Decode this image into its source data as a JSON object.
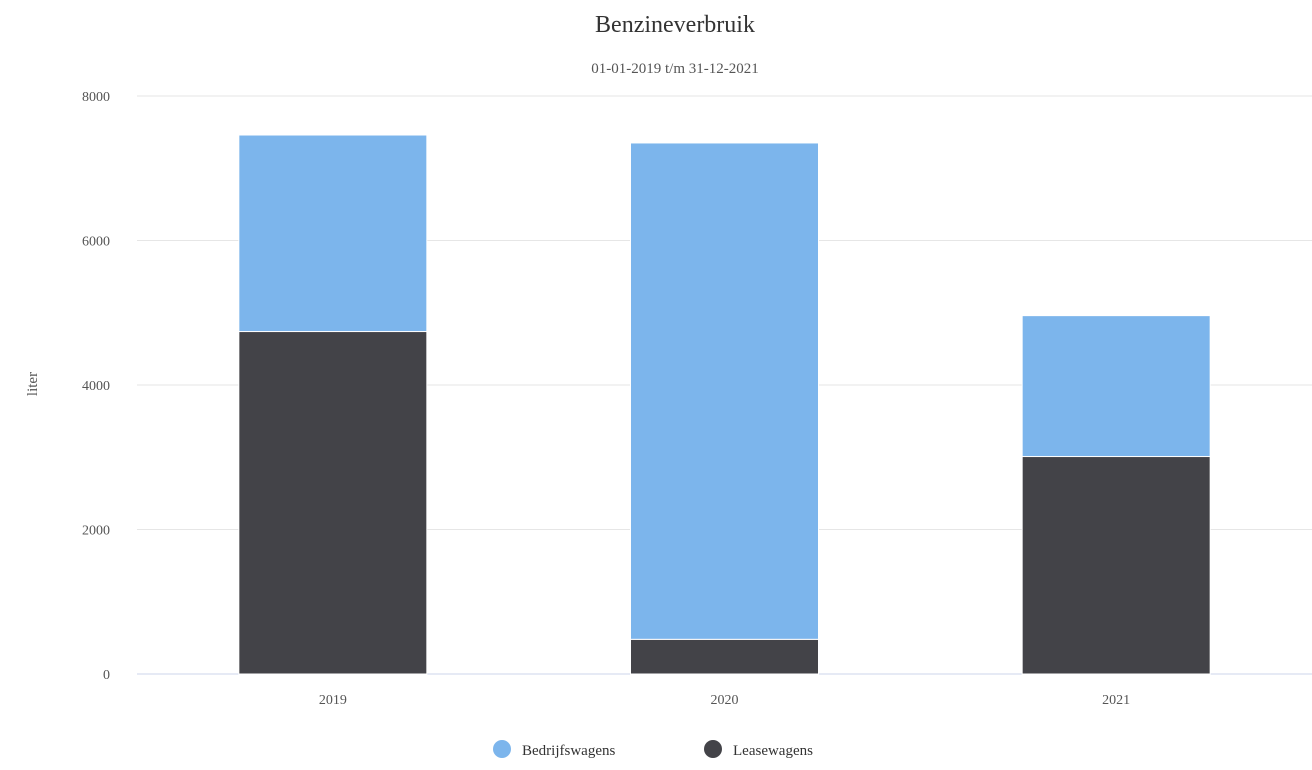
{
  "chart_data": {
    "type": "bar",
    "stacked": true,
    "title": "Benzineverbruik",
    "subtitle": "01-01-2019 t/m 31-12-2021",
    "xlabel": "",
    "ylabel": "liter",
    "categories": [
      "2019",
      "2020",
      "2021"
    ],
    "ylim": [
      0,
      8000
    ],
    "yticks": [
      0,
      2000,
      4000,
      6000,
      8000
    ],
    "grid": true,
    "legend": "bottom-center",
    "series": [
      {
        "name": "Leasewagens",
        "color": "#434348",
        "values": [
          4740,
          480,
          3010
        ]
      },
      {
        "name": "Bedrijfswagens",
        "color": "#7cb5ec",
        "values": [
          2720,
          6870,
          1950
        ]
      }
    ],
    "legend_order": [
      "Bedrijfswagens",
      "Leasewagens"
    ]
  }
}
